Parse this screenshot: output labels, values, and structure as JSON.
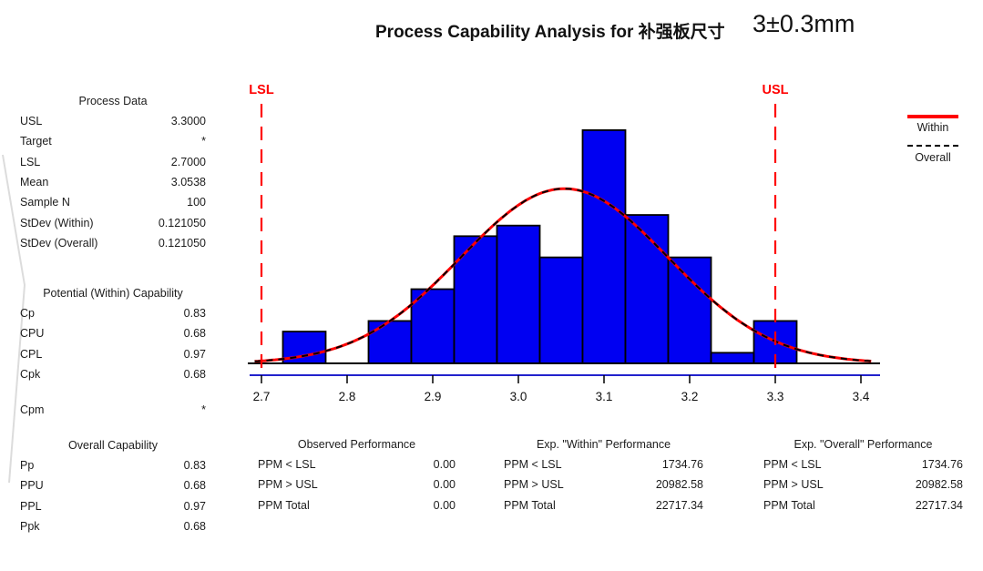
{
  "header": {
    "title": "Process Capability Analysis for 补强板尺寸",
    "spec": "3±0.3mm"
  },
  "panels": {
    "process_data": {
      "title": "Process Data",
      "rows": [
        {
          "label": "USL",
          "value": "3.3000"
        },
        {
          "label": "Target",
          "value": "*"
        },
        {
          "label": "LSL",
          "value": "2.7000"
        },
        {
          "label": "Mean",
          "value": "3.0538"
        },
        {
          "label": "Sample N",
          "value": "100"
        },
        {
          "label": "StDev (Within)",
          "value": "0.121050"
        },
        {
          "label": "StDev (Overall)",
          "value": "0.121050"
        }
      ]
    },
    "within_capability": {
      "title": "Potential (Within) Capability",
      "rows": [
        {
          "label": "Cp",
          "value": "0.83"
        },
        {
          "label": "CPU",
          "value": "0.68"
        },
        {
          "label": "CPL",
          "value": "0.97"
        },
        {
          "label": "Cpk",
          "value": "0.68"
        },
        {
          "label": "Cpm",
          "value": "*"
        }
      ]
    },
    "overall_capability": {
      "title": "Overall Capability",
      "rows": [
        {
          "label": "Pp",
          "value": "0.83"
        },
        {
          "label": "PPU",
          "value": "0.68"
        },
        {
          "label": "PPL",
          "value": "0.97"
        },
        {
          "label": "Ppk",
          "value": "0.68"
        }
      ]
    },
    "observed_performance": {
      "title": "Observed Performance",
      "rows": [
        {
          "label": "PPM < LSL",
          "value": "0.00"
        },
        {
          "label": "PPM > USL",
          "value": "0.00"
        },
        {
          "label": "PPM Total",
          "value": "0.00"
        }
      ]
    },
    "exp_within_performance": {
      "title": "Exp. \"Within\" Performance",
      "rows": [
        {
          "label": "PPM < LSL",
          "value": "1734.76"
        },
        {
          "label": "PPM > USL",
          "value": "20982.58"
        },
        {
          "label": "PPM Total",
          "value": "22717.34"
        }
      ]
    },
    "exp_overall_performance": {
      "title": "Exp. \"Overall\" Performance",
      "rows": [
        {
          "label": "PPM < LSL",
          "value": "1734.76"
        },
        {
          "label": "PPM > USL",
          "value": "20982.58"
        },
        {
          "label": "PPM Total",
          "value": "22717.34"
        }
      ]
    }
  },
  "legend": {
    "items": [
      {
        "label": "Within",
        "style": "solid-red"
      },
      {
        "label": "Overall",
        "style": "dashed-black"
      }
    ]
  },
  "chart_data": {
    "type": "bar",
    "subtype": "capability-histogram",
    "title": "Process Capability Analysis for 补强板尺寸",
    "annotation": "3±0.3mm",
    "bin_width": 0.05,
    "bin_centers": [
      2.75,
      2.8,
      2.85,
      2.9,
      2.95,
      3.0,
      3.05,
      3.1,
      3.15,
      3.2,
      3.25,
      3.3
    ],
    "counts": [
      3,
      0,
      4,
      7,
      12,
      13,
      10,
      22,
      14,
      10,
      1,
      4
    ],
    "x_ticks": [
      2.7,
      2.8,
      2.9,
      3.0,
      3.1,
      3.2,
      3.3,
      3.4
    ],
    "x_range": [
      2.692,
      3.414
    ],
    "xlabel": "",
    "ylabel": "",
    "sample_n": 100,
    "lsl": {
      "value": 2.7,
      "label": "LSL"
    },
    "usl": {
      "value": 3.3,
      "label": "USL"
    },
    "normal_curves": [
      {
        "name": "Within",
        "mean": 3.0538,
        "stdev": 0.12105,
        "style": "solid-red"
      },
      {
        "name": "Overall",
        "mean": 3.0538,
        "stdev": 0.12105,
        "style": "dashed-black"
      }
    ],
    "colors": {
      "bar_fill": "#0000f2",
      "bar_border": "#000000",
      "within_curve": "#ff0000",
      "overall_curve": "#000000",
      "spec_line": "#ff0000",
      "axis_line": "#2222cc",
      "tick": "#000000"
    },
    "legend_position": "right",
    "grid": false
  }
}
